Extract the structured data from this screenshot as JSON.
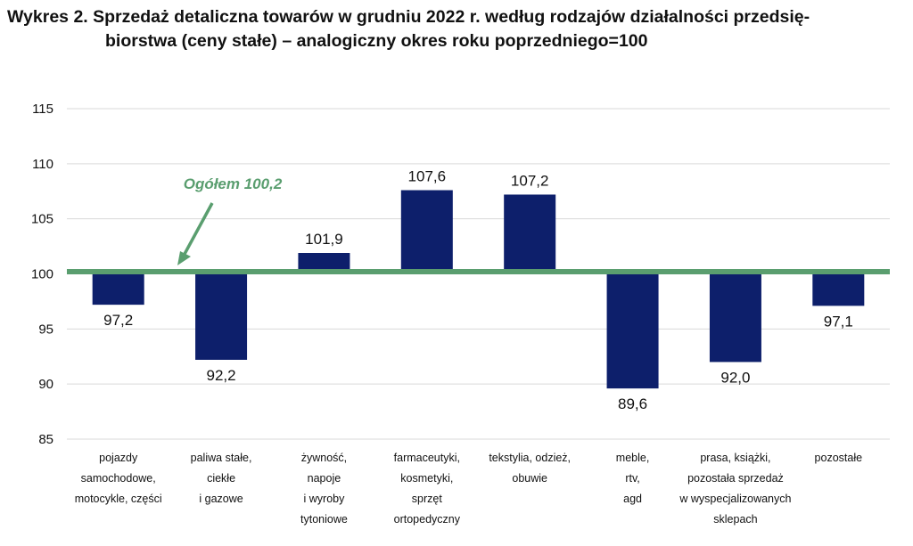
{
  "title_line1": "Wykres 2. Sprzedaż detaliczna towarów w grudniu 2022 r. według rodzajów działalności przedsię-",
  "title_line2": "biorstwa (ceny stałe) – analogiczny okres roku poprzedniego=100",
  "colors": {
    "bar": "#0d1f6b",
    "reference": "#5a9e6f",
    "grid": "#d9d9d9"
  },
  "chart_data": {
    "type": "bar",
    "title": "Wykres 2. Sprzedaż detaliczna towarów w grudniu 2022 r. według rodzajów działalności przedsiębiorstwa (ceny stałe) – analogiczny okres roku poprzedniego=100",
    "categories": [
      [
        "pojazdy",
        "samochodowe,",
        "motocykle, części"
      ],
      [
        "paliwa stałe,",
        "ciekłe",
        "i gazowe"
      ],
      [
        "żywność,",
        "napoje",
        "i wyroby",
        "tytoniowe"
      ],
      [
        "farmaceutyki,",
        "kosmetyki,",
        "sprzęt",
        "ortopedyczny"
      ],
      [
        "tekstylia, odzież,",
        "obuwie"
      ],
      [
        "meble,",
        "rtv,",
        "agd"
      ],
      [
        "prasa, książki,",
        "pozostała sprzedaż",
        "w wyspecjalizowanych",
        "sklepach"
      ],
      [
        "pozostałe"
      ]
    ],
    "values": [
      97.2,
      92.2,
      101.9,
      107.6,
      107.2,
      89.6,
      92.0,
      97.1
    ],
    "value_labels": [
      "97,2",
      "92,2",
      "101,9",
      "107,6",
      "107,2",
      "89,6",
      "92,0",
      "97,1"
    ],
    "baseline": 100,
    "ylim": [
      85,
      115
    ],
    "yticks": [
      85,
      90,
      95,
      100,
      105,
      110,
      115
    ],
    "grid": true,
    "reference_line": {
      "value": 100.2,
      "label": "Ogółem 100,2"
    }
  }
}
